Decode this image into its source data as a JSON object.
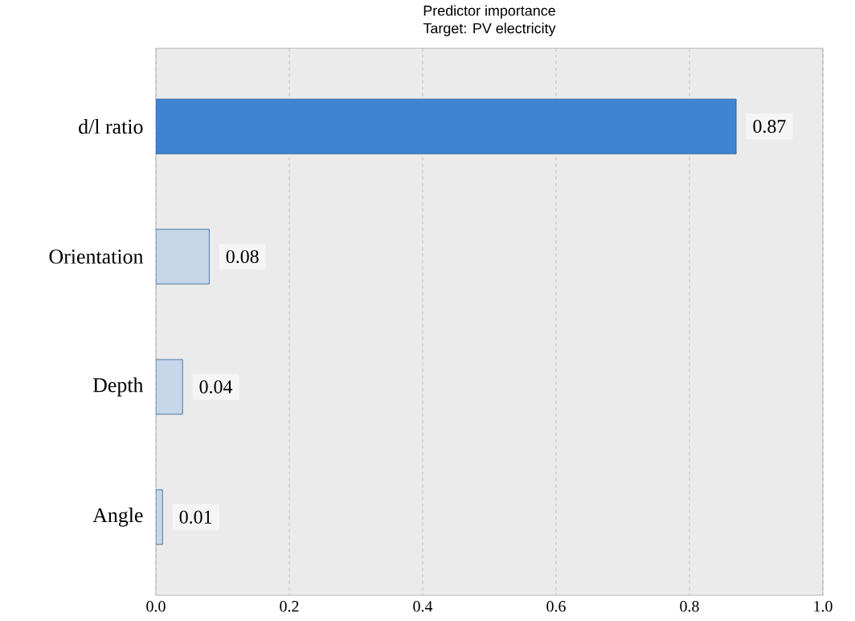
{
  "chart_data": {
    "type": "bar",
    "orientation": "horizontal",
    "title": "Predictor importance",
    "subtitle": "Target: PV electricity",
    "categories": [
      "d/l ratio",
      "Orientation",
      "Depth",
      "Angle"
    ],
    "values": [
      0.87,
      0.08,
      0.04,
      0.01
    ],
    "colors": [
      "#3d85d0",
      "#c6d7ea",
      "#c6d7ea",
      "#c6d7ea"
    ],
    "data_labels": true,
    "xlim": [
      0,
      1
    ],
    "xticks": [
      {
        "value": 0,
        "label": "0.0"
      },
      {
        "value": 0.2,
        "label": "0.2"
      },
      {
        "value": 0.4,
        "label": "0.4"
      },
      {
        "value": 0.6,
        "label": "0.6"
      },
      {
        "value": 0.8,
        "label": "0.8"
      },
      {
        "value": 1,
        "label": "1.0"
      }
    ],
    "grid": "x"
  }
}
